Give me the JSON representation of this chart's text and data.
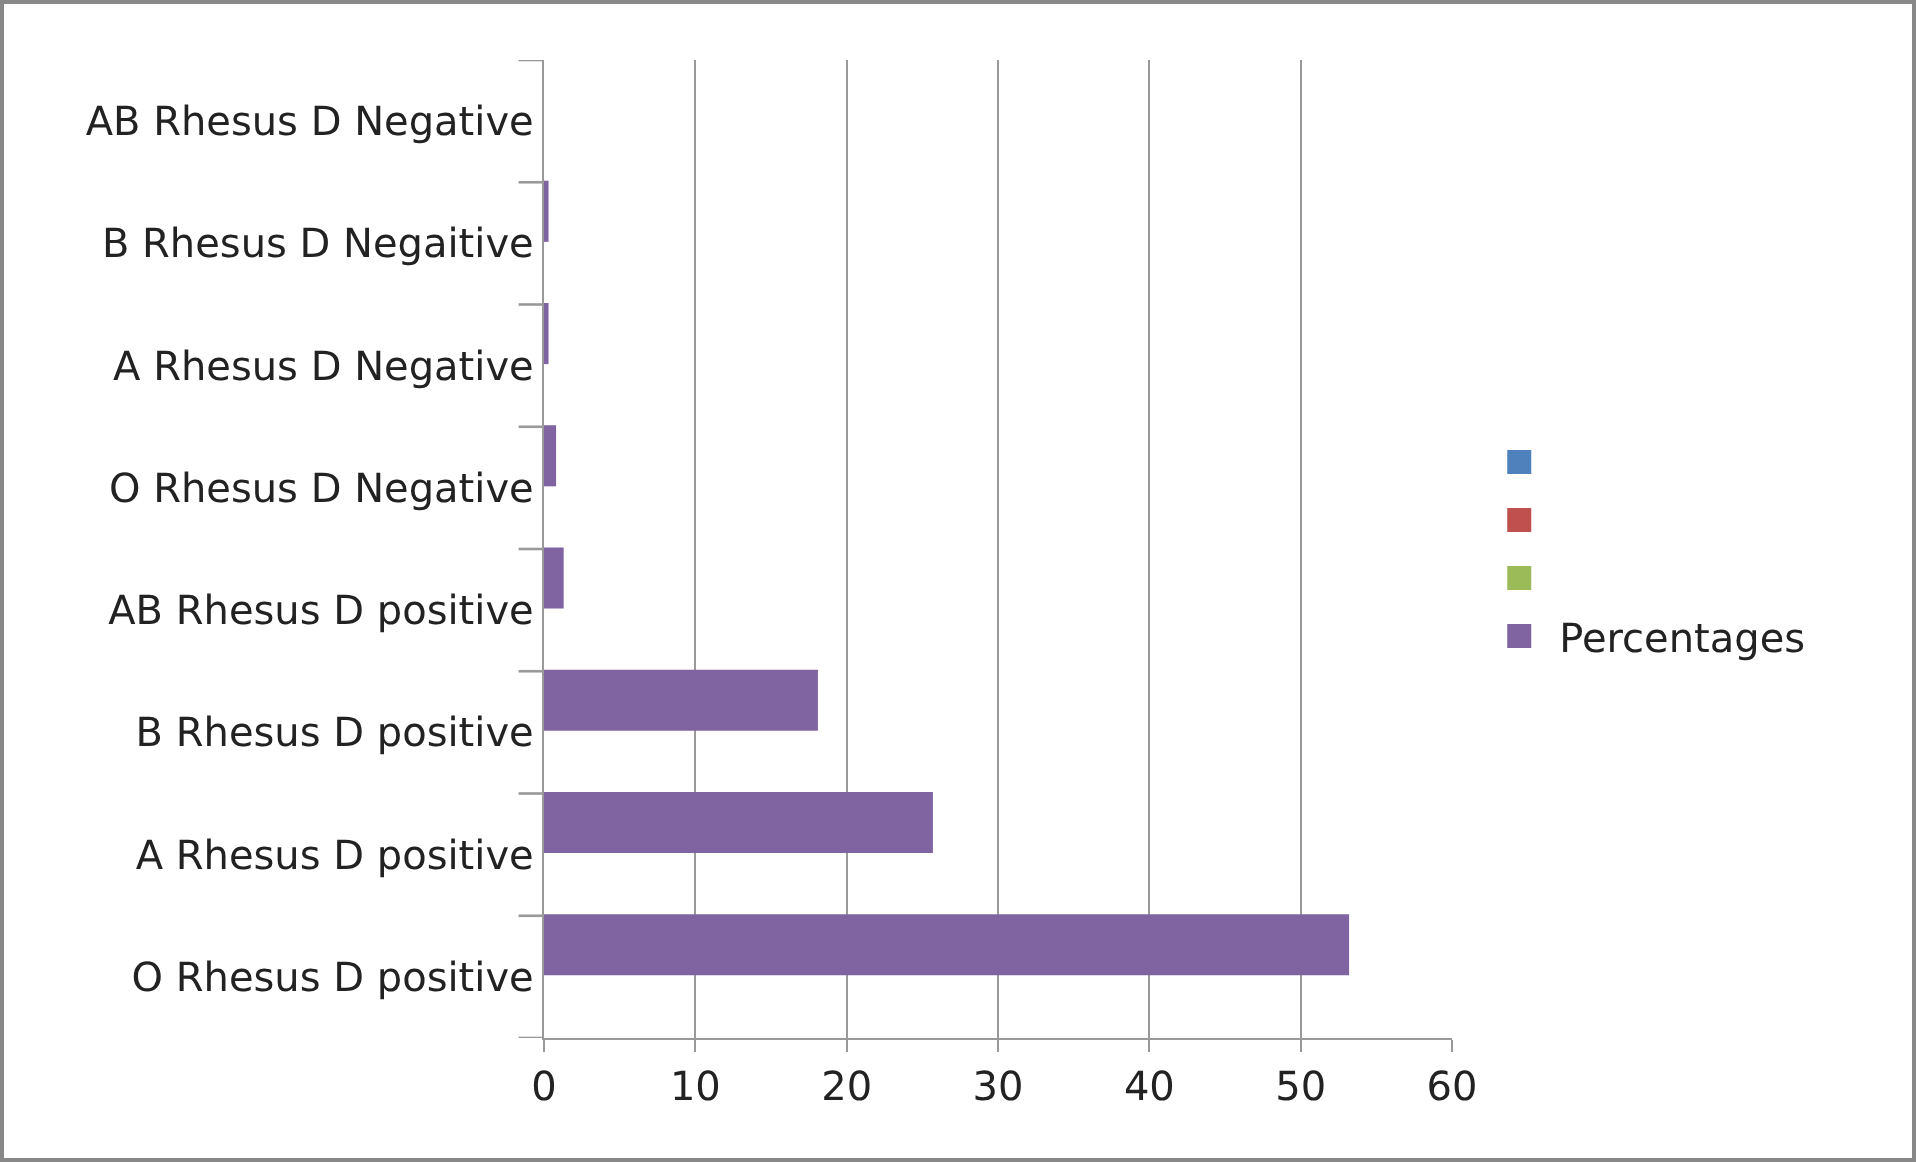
{
  "chart_data": {
    "type": "bar",
    "orientation": "horizontal",
    "categories": [
      "AB Rhesus D Negative",
      "B Rhesus D Negaitive",
      "A Rhesus D Negative",
      "O Rhesus D Negative",
      "AB Rhesus D positive",
      "B Rhesus D positive",
      "A Rhesus D positive",
      "O Rhesus D positive"
    ],
    "series": [
      {
        "color": "#4f81bd",
        "values": [
          null,
          null,
          null,
          null,
          null,
          null,
          null,
          null
        ]
      },
      {
        "color": "#c0504d",
        "values": [
          null,
          null,
          null,
          null,
          null,
          null,
          null,
          null
        ]
      },
      {
        "color": "#9bbb59",
        "values": [
          null,
          null,
          null,
          null,
          null,
          null,
          null,
          null
        ]
      },
      {
        "name": "Percentages",
        "color": "#8064a2",
        "values": [
          0,
          0.3,
          0.3,
          0.8,
          1.3,
          18.1,
          25.7,
          53.2
        ]
      }
    ],
    "xlim": [
      0,
      60
    ],
    "xticks": [
      0,
      10,
      20,
      30,
      40,
      50,
      60
    ],
    "grid": "x",
    "legend": "right"
  }
}
